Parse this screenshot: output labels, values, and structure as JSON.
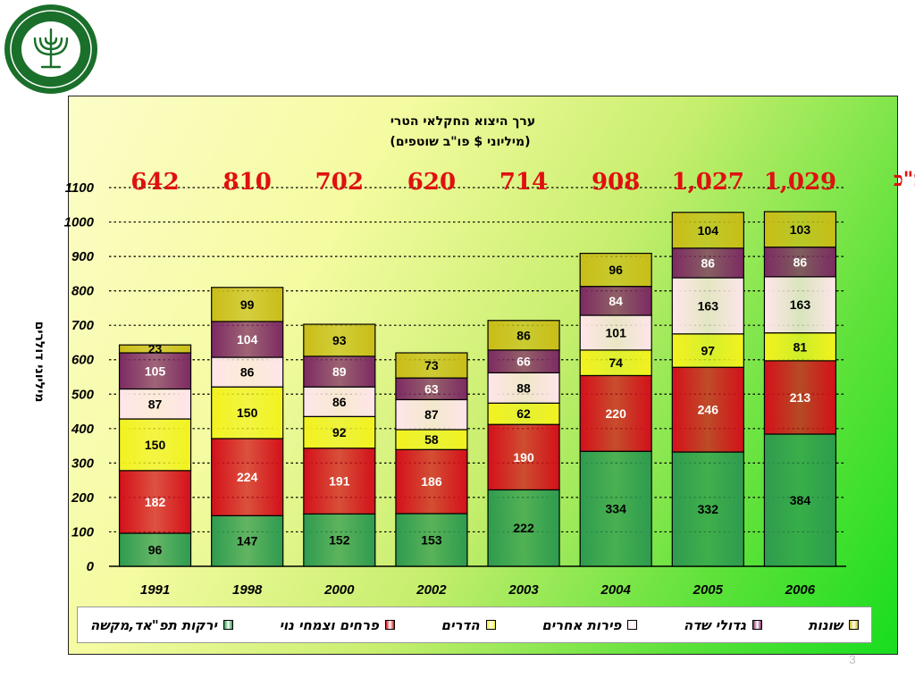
{
  "slide": {
    "page_number": "3"
  },
  "logo": {
    "text": "משרד החקלאות ופיתוח הכפר"
  },
  "colors": {
    "vegetables": "#2e9b4f",
    "flowers": "#d4101a",
    "citrus": "#f2f21e",
    "other_fruit": "#ffe5ea",
    "field_crops": "#7d2a63",
    "misc": "#c9bd17",
    "total_text": "#e01010",
    "background_start": "#fdfdc8",
    "background_end": "#18dd1f"
  },
  "chart_data": {
    "type": "bar",
    "stacked": true,
    "title": "ערך היצוא החקלאי הטרי",
    "subtitle": "(מיליוני $ פו\"ב שוטפים)",
    "ylabel": "מיליוני דולרים",
    "xlabel": "",
    "ylim": [
      0,
      1100
    ],
    "yticks": [
      0,
      100,
      200,
      300,
      400,
      500,
      600,
      700,
      800,
      900,
      1000,
      1100
    ],
    "grid": true,
    "legend_position": "bottom",
    "categories": [
      "1991",
      "1998",
      "2000",
      "2002",
      "2003",
      "2004",
      "2005",
      "2006"
    ],
    "series": [
      {
        "name": "ירקות תפ\"אד,מקשה",
        "values": [
          96,
          147,
          152,
          153,
          222,
          334,
          332,
          384
        ]
      },
      {
        "name": "פרחים וצמחי נוי",
        "values": [
          182,
          224,
          191,
          186,
          190,
          220,
          246,
          213
        ]
      },
      {
        "name": "הדרים",
        "values": [
          150,
          150,
          92,
          58,
          62,
          74,
          97,
          81
        ]
      },
      {
        "name": "פירות אחרים",
        "values": [
          87,
          86,
          86,
          87,
          88,
          101,
          163,
          163
        ]
      },
      {
        "name": "גדולי שדה",
        "values": [
          105,
          104,
          89,
          63,
          66,
          84,
          86,
          86
        ]
      },
      {
        "name": "שונות",
        "values": [
          23,
          99,
          93,
          73,
          86,
          96,
          104,
          103
        ]
      }
    ],
    "totals_label": "סה\"כ",
    "totals": [
      "642",
      "810",
      "702",
      "620",
      "714",
      "908",
      "1,027",
      "1,029"
    ]
  }
}
